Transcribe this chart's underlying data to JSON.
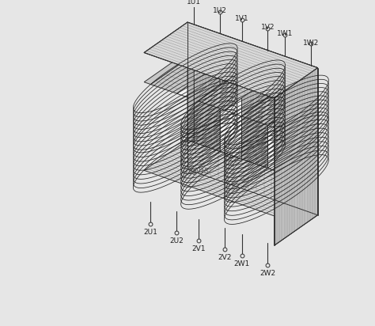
{
  "bg_color": "#e6e6e6",
  "lc": "#333333",
  "top_labels": [
    "1U1",
    "1U2",
    "1V1",
    "1V2",
    "1W1",
    "1W2"
  ],
  "bot_labels": [
    "2U1",
    "2U2",
    "2V1",
    "2V2",
    "2W1",
    "2W2"
  ],
  "label_note": "17fig01B",
  "n_lam": 16,
  "n_coil": 10
}
